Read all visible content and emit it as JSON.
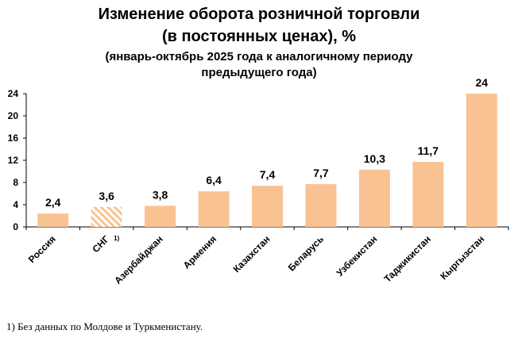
{
  "chart_data": {
    "type": "bar",
    "title": "Изменение оборота розничной торговли",
    "title_line2": "(в постоянных ценах), %",
    "subtitle_line1": "(январь-октябрь 2025 года к аналогичному периоду",
    "subtitle_line2": "предыдущего года)",
    "categories": [
      "Россия",
      "СНГ",
      "Азербайджан",
      "Армения",
      "Казахстан",
      "Беларусь",
      "Узбекистан",
      "Таджикистан",
      "Кыргызстан"
    ],
    "category_superscripts": [
      "",
      "1)",
      "",
      "",
      "",
      "",
      "",
      "",
      ""
    ],
    "values": [
      2.4,
      3.6,
      3.8,
      6.4,
      7.4,
      7.7,
      10.3,
      11.7,
      24
    ],
    "value_labels": [
      "2,4",
      "3,6",
      "3,8",
      "6,4",
      "7,4",
      "7,7",
      "10,3",
      "11,7",
      "24"
    ],
    "hatched": [
      false,
      true,
      false,
      false,
      false,
      false,
      false,
      false,
      false
    ],
    "yticks": [
      0,
      4,
      8,
      12,
      16,
      20,
      24
    ],
    "ylim": [
      0,
      24
    ],
    "xlabel": "",
    "ylabel": "",
    "bar_color": "#f9c293",
    "hatch_color": "#f9c293",
    "footnote": "1) Без данных по Молдове и Туркменистану."
  }
}
